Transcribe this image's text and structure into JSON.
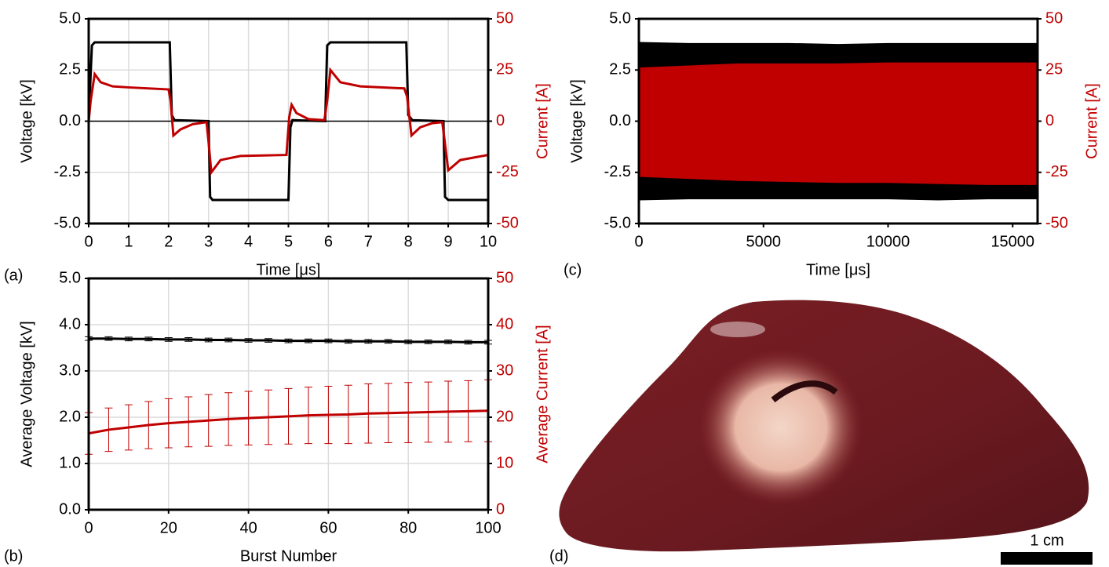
{
  "chart_data": [
    {
      "type": "line",
      "panel_label": "(a)",
      "xlabel": "Time [μs]",
      "ylabel": "Voltage [kV]",
      "y2label": "Current [A]",
      "y2color": "#c00000",
      "xlim": [
        0,
        10
      ],
      "xticks": [
        0,
        1,
        2,
        3,
        4,
        5,
        6,
        7,
        8,
        9,
        10
      ],
      "ylim": [
        -5,
        5
      ],
      "yticks": [
        {
          "value": -5,
          "label": "-5.0"
        },
        {
          "value": -2.5,
          "label": "-2.5"
        },
        {
          "value": 0,
          "label": "0.0"
        },
        {
          "value": 2.5,
          "label": "2.5"
        },
        {
          "value": 5,
          "label": "5.0"
        }
      ],
      "y2lim": [
        -50,
        50
      ],
      "y2ticks": [
        -50,
        -25,
        0,
        25,
        50
      ],
      "grid": true,
      "zero_line": true,
      "series": [
        {
          "color": "#000000",
          "x": [
            0,
            0.08,
            0.15,
            2.03,
            2.08,
            2.15,
            3.0,
            3.04,
            3.1,
            5.0,
            5.05,
            5.1,
            5.92,
            5.97,
            6.05,
            7.95,
            8.0,
            8.1,
            8.88,
            8.92,
            9.0,
            10
          ],
          "values": [
            0,
            3.7,
            3.85,
            3.85,
            0.3,
            0.05,
            0,
            -3.7,
            -3.85,
            -3.85,
            -0.3,
            0.05,
            0,
            3.7,
            3.85,
            3.85,
            0.3,
            0.05,
            0,
            -3.7,
            -3.85,
            -3.85
          ]
        },
        {
          "color": "#c00000",
          "axis": "y2",
          "x": [
            0,
            0.05,
            0.15,
            0.3,
            0.6,
            1.0,
            2.0,
            2.05,
            2.12,
            2.3,
            2.6,
            2.95,
            3.0,
            3.07,
            3.3,
            3.8,
            4.95,
            5.02,
            5.08,
            5.2,
            5.5,
            5.9,
            5.97,
            6.05,
            6.3,
            6.8,
            7.9,
            7.97,
            8.08,
            8.3,
            8.6,
            8.85,
            8.9,
            9.0,
            9.3,
            10
          ],
          "values": [
            0,
            10,
            23,
            19,
            17,
            16.5,
            15.5,
            10,
            -7,
            -4,
            -1.5,
            -0.5,
            -10,
            -25,
            -19,
            -17,
            -16.5,
            2,
            8,
            4,
            1,
            0.5,
            10,
            25,
            19,
            17,
            16,
            12,
            -7,
            -3,
            -1,
            -0.5,
            -8,
            -24,
            -19,
            -16.5
          ]
        }
      ]
    },
    {
      "type": "envelope",
      "panel_label": "(c)",
      "xlabel": "Time [μs]",
      "ylabel": "Voltage [kV]",
      "y2label": "Current [A]",
      "y2color": "#c00000",
      "xlim": [
        0,
        16000
      ],
      "xticks": [
        0,
        5000,
        10000,
        15000
      ],
      "ylim": [
        -5,
        5
      ],
      "yticks": [
        {
          "value": -5,
          "label": "-5.0"
        },
        {
          "value": -2.5,
          "label": "-2.5"
        },
        {
          "value": 0,
          "label": "0.0"
        },
        {
          "value": 2.5,
          "label": "2.5"
        },
        {
          "value": 5,
          "label": "5.0"
        }
      ],
      "y2lim": [
        -50,
        50
      ],
      "y2ticks": [
        -50,
        -25,
        0,
        25,
        50
      ],
      "grid": false,
      "series": [
        {
          "color": "#000000",
          "x": [
            0,
            2000,
            4000,
            6000,
            8000,
            10000,
            12000,
            14000,
            16000
          ],
          "max": [
            3.85,
            3.8,
            3.8,
            3.8,
            3.75,
            3.8,
            3.8,
            3.8,
            3.8
          ],
          "min": [
            -3.85,
            -3.8,
            -3.8,
            -3.8,
            -3.8,
            -3.8,
            -3.85,
            -3.8,
            -3.8
          ]
        },
        {
          "color": "#c00000",
          "axis": "y2",
          "x": [
            0,
            2000,
            4000,
            6000,
            8000,
            10000,
            12000,
            14000,
            16000
          ],
          "max": [
            26,
            27,
            28,
            28,
            28,
            28.5,
            28.5,
            28.5,
            28.5
          ],
          "min": [
            -27,
            -28,
            -29,
            -29.5,
            -30,
            -30,
            -30.5,
            -31,
            -31
          ]
        }
      ]
    },
    {
      "type": "errorline",
      "panel_label": "(b)",
      "xlabel": "Burst Number",
      "ylabel": "Average Voltage [kV]",
      "y2label": "Average Current [A]",
      "y2color": "#c00000",
      "xlim": [
        0,
        100
      ],
      "xticks": [
        0,
        20,
        40,
        60,
        80,
        100
      ],
      "ylim": [
        0,
        5
      ],
      "yticks": [
        {
          "value": 0,
          "label": "0.0"
        },
        {
          "value": 1,
          "label": "1.0"
        },
        {
          "value": 2,
          "label": "2.0"
        },
        {
          "value": 3,
          "label": "3.0"
        },
        {
          "value": 4,
          "label": "4.0"
        },
        {
          "value": 5,
          "label": "5.0"
        }
      ],
      "y2lim": [
        0,
        50
      ],
      "y2ticks": [
        0,
        10,
        20,
        30,
        40,
        50
      ],
      "grid": true,
      "series": [
        {
          "color": "#000000",
          "x": [
            0,
            5,
            10,
            15,
            20,
            25,
            30,
            35,
            40,
            45,
            50,
            55,
            60,
            65,
            70,
            75,
            80,
            85,
            90,
            95,
            100
          ],
          "values": [
            3.7,
            3.7,
            3.69,
            3.69,
            3.68,
            3.68,
            3.67,
            3.67,
            3.66,
            3.66,
            3.65,
            3.65,
            3.65,
            3.64,
            3.64,
            3.64,
            3.63,
            3.63,
            3.63,
            3.62,
            3.62
          ],
          "errors": [
            0.04,
            0.04,
            0.04,
            0.04,
            0.04,
            0.04,
            0.04,
            0.04,
            0.04,
            0.04,
            0.04,
            0.04,
            0.04,
            0.04,
            0.04,
            0.04,
            0.04,
            0.04,
            0.04,
            0.04,
            0.04
          ]
        },
        {
          "color": "#c00000",
          "axis": "y2",
          "x": [
            0,
            5,
            10,
            15,
            20,
            25,
            30,
            35,
            40,
            45,
            50,
            55,
            60,
            65,
            70,
            75,
            80,
            85,
            90,
            95,
            100
          ],
          "values": [
            16.5,
            17.3,
            17.8,
            18.3,
            18.7,
            19.0,
            19.3,
            19.6,
            19.8,
            20.0,
            20.2,
            20.4,
            20.5,
            20.6,
            20.8,
            20.9,
            21.0,
            21.1,
            21.2,
            21.3,
            21.4
          ],
          "errors": [
            4.5,
            4.7,
            4.9,
            5.1,
            5.3,
            5.4,
            5.6,
            5.7,
            5.8,
            5.9,
            6.0,
            6.1,
            6.2,
            6.3,
            6.4,
            6.4,
            6.5,
            6.5,
            6.6,
            6.6,
            6.7
          ]
        }
      ]
    }
  ],
  "photo": {
    "panel_label": "(d)",
    "scale_label": "1 cm"
  }
}
